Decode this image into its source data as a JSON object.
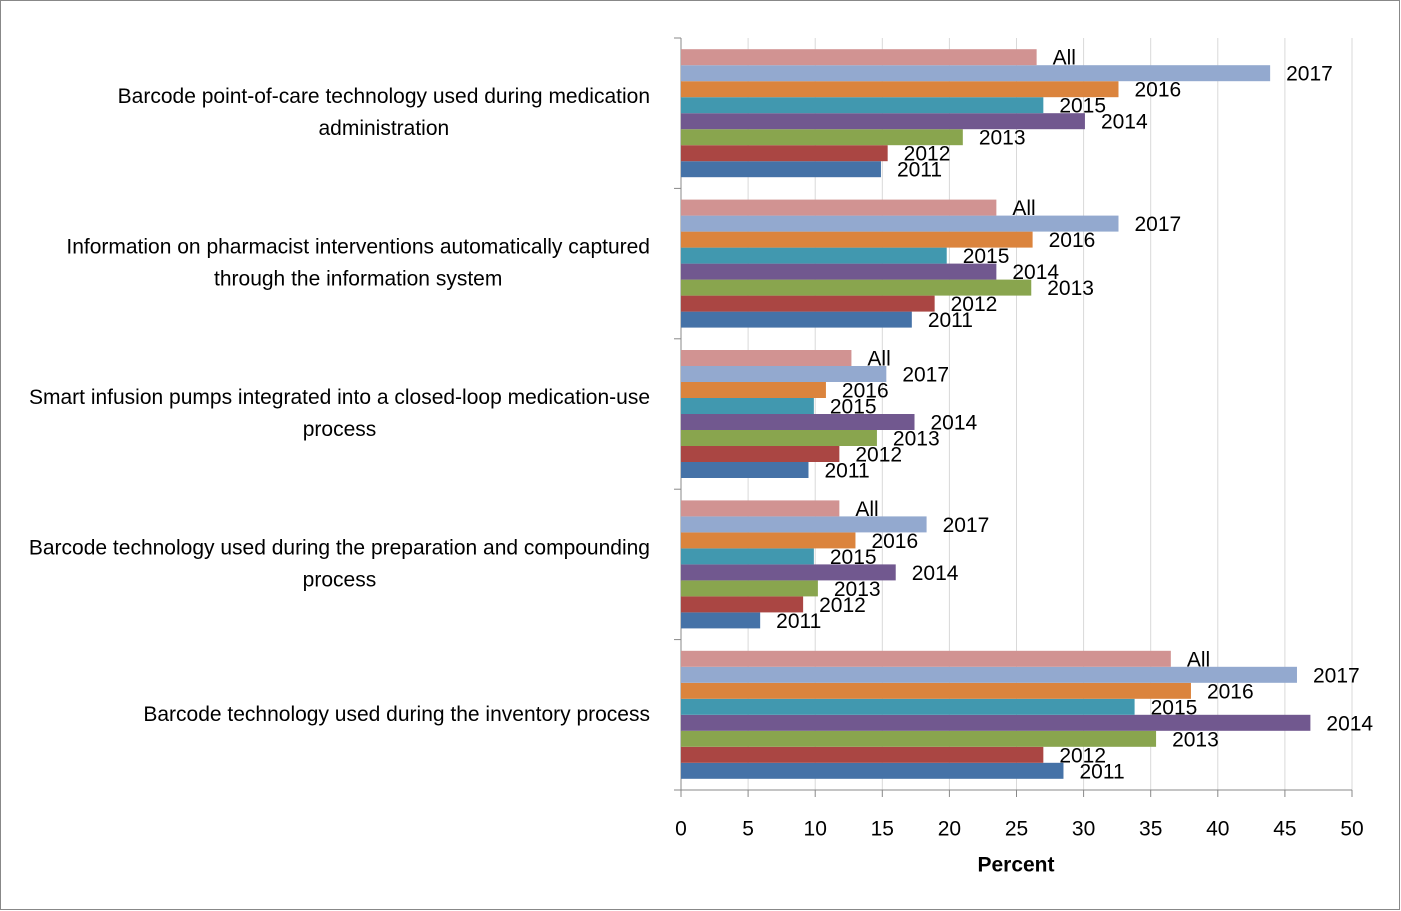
{
  "chart_data": {
    "type": "bar",
    "orientation": "horizontal",
    "x_label": "Percent",
    "categories": [
      "Barcode point-of-care technology used during medication administration",
      "Information on pharmacist interventions automatically captured through the information system",
      "Smart infusion pumps integrated into a closed-loop medication-use process",
      "Barcode technology used during the preparation and compounding process",
      "Barcode technology used during the inventory process"
    ],
    "series": [
      {
        "name": "2011",
        "color": "#4572a7",
        "values": [
          14.9,
          17.2,
          9.5,
          5.9,
          28.5
        ]
      },
      {
        "name": "2012",
        "color": "#aa4643",
        "values": [
          15.4,
          18.9,
          11.8,
          9.1,
          27.0
        ]
      },
      {
        "name": "2013",
        "color": "#89a54e",
        "values": [
          21.0,
          26.1,
          14.6,
          10.2,
          35.4
        ]
      },
      {
        "name": "2014",
        "color": "#71588f",
        "values": [
          30.1,
          23.5,
          17.4,
          16.0,
          46.9
        ]
      },
      {
        "name": "2015",
        "color": "#4198af",
        "values": [
          27.0,
          19.8,
          9.9,
          9.9,
          33.8
        ]
      },
      {
        "name": "2016",
        "color": "#db843d",
        "values": [
          32.6,
          26.2,
          10.8,
          13.0,
          38.0
        ]
      },
      {
        "name": "2017",
        "color": "#93a9cf",
        "values": [
          43.9,
          32.6,
          15.3,
          18.3,
          45.9
        ]
      },
      {
        "name": "All",
        "color": "#d19392",
        "values": [
          26.5,
          23.5,
          12.7,
          11.8,
          36.5
        ]
      }
    ],
    "xlim": [
      0,
      50
    ],
    "xticks": [
      0,
      5,
      10,
      15,
      20,
      25,
      30,
      35,
      40,
      45,
      50
    ],
    "grid": true
  }
}
